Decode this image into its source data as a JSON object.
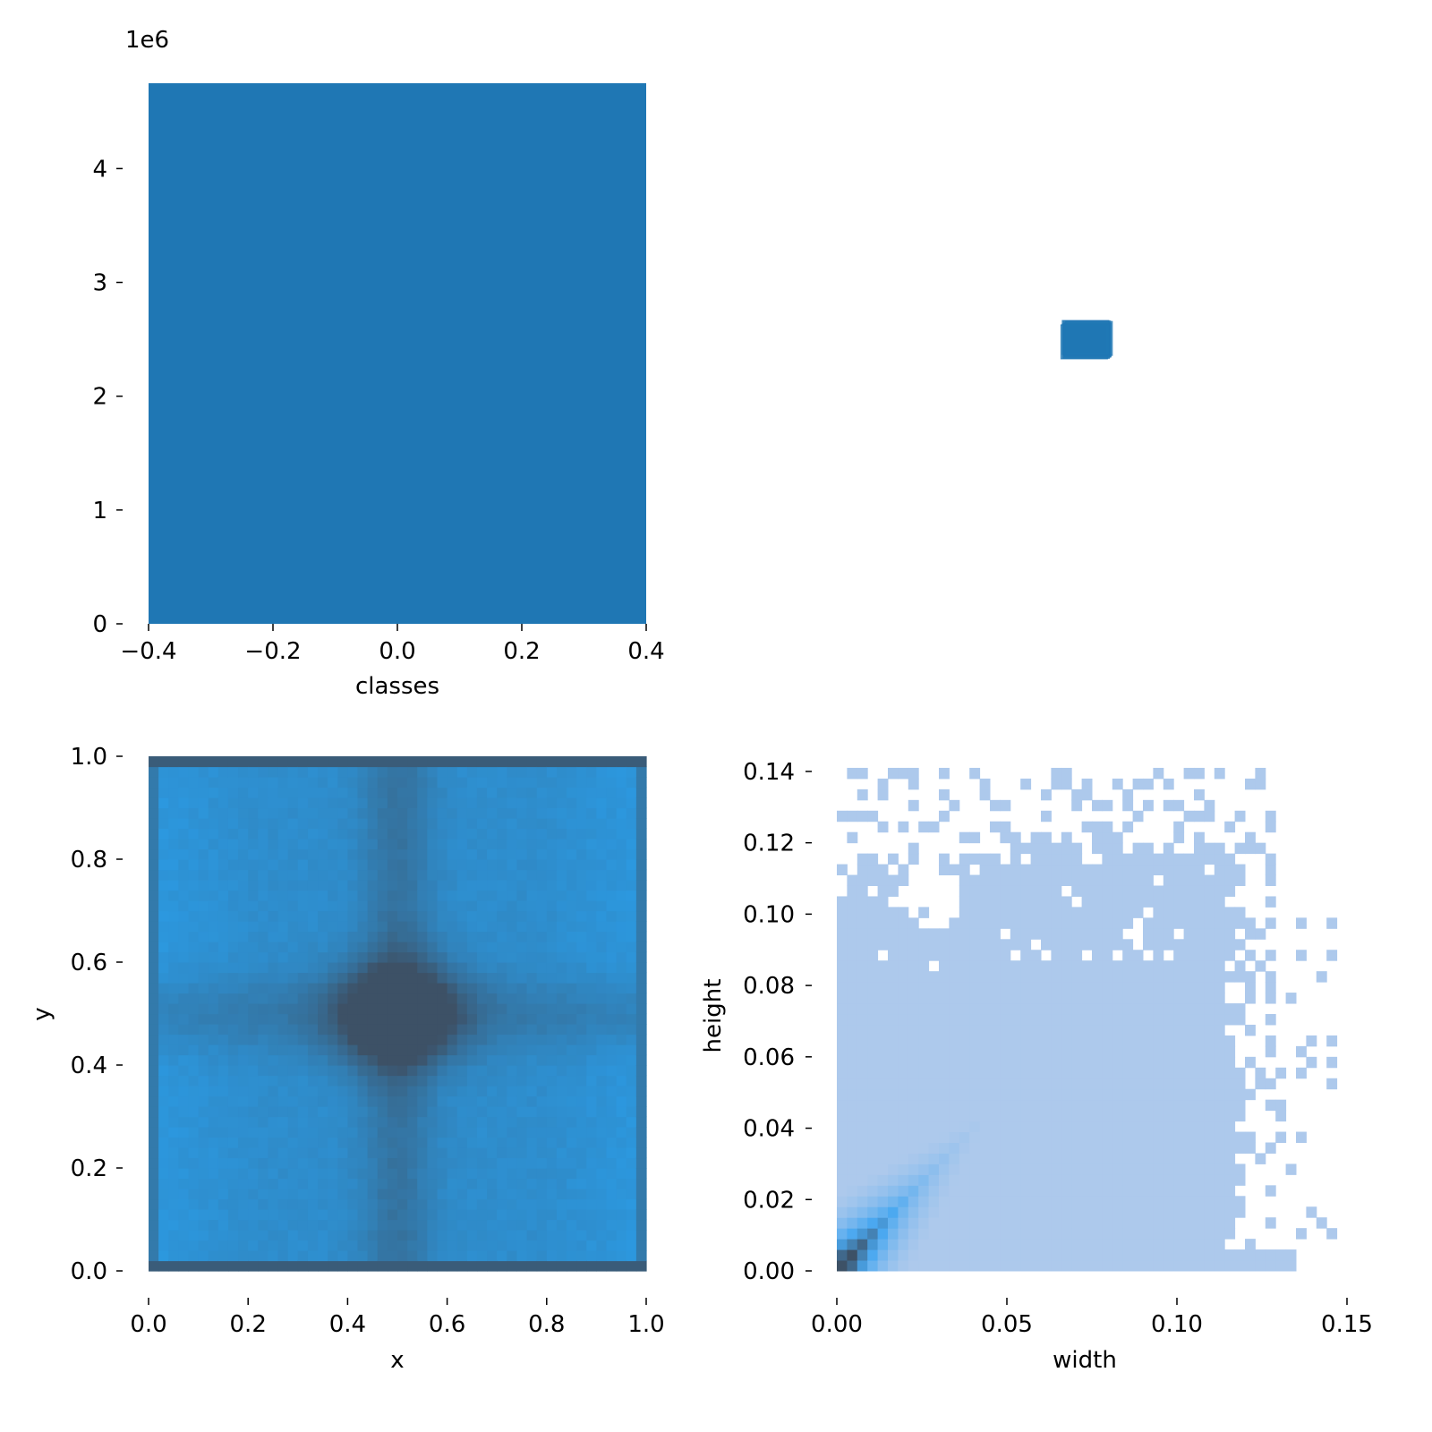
{
  "chart_data": [
    {
      "type": "bar",
      "panel": "top-left",
      "title": "",
      "xlabel": "classes",
      "ylabel": "",
      "offset_text": "1e6",
      "categories": [
        0
      ],
      "values": [
        4750000
      ],
      "bar_extent": [
        -0.4,
        0.4
      ],
      "xlim": [
        -0.4,
        0.4
      ],
      "ylim": [
        0,
        4750000
      ],
      "xticks": [
        -0.4,
        -0.2,
        0.0,
        0.2,
        0.4
      ],
      "xtick_labels": [
        "−0.4",
        "−0.2",
        "0.0",
        "0.2",
        "0.4"
      ],
      "yticks": [
        0,
        1,
        2,
        3,
        4
      ],
      "ytick_labels": [
        "0",
        "1",
        "2",
        "3",
        "4"
      ],
      "bar_color": "#1f77b4",
      "grid": false,
      "legend": "none"
    },
    {
      "type": "scatter",
      "panel": "top-right",
      "title": "",
      "note": "single cluster of overlapping square markers, no axes shown",
      "color": "#1f77b4",
      "grid": false
    },
    {
      "type": "heatmap",
      "panel": "bottom-left",
      "title": "",
      "xlabel": "x",
      "ylabel": "y",
      "xlim": [
        0,
        1
      ],
      "ylim": [
        0,
        1
      ],
      "xticks": [
        0.0,
        0.2,
        0.4,
        0.6,
        0.8,
        1.0
      ],
      "xtick_labels": [
        "0.0",
        "0.2",
        "0.4",
        "0.6",
        "0.8",
        "1.0"
      ],
      "yticks": [
        0.0,
        0.2,
        0.4,
        0.6,
        0.8,
        1.0
      ],
      "ytick_labels": [
        "0.0",
        "0.2",
        "0.4",
        "0.6",
        "0.8",
        "1.0"
      ],
      "bins": 50,
      "peak_center": [
        0.5,
        0.5
      ],
      "edge_density": "high along y=0 and y=1 borders",
      "color_low": "#2b9be4",
      "color_high": "#3d5166",
      "grid": false
    },
    {
      "type": "heatmap",
      "panel": "bottom-right",
      "title": "",
      "xlabel": "width",
      "ylabel": "height",
      "xlim": [
        0,
        0.15
      ],
      "ylim": [
        0,
        0.145
      ],
      "xticks": [
        0.0,
        0.05,
        0.1,
        0.15
      ],
      "xtick_labels": [
        "0.00",
        "0.05",
        "0.10",
        "0.15"
      ],
      "yticks": [
        0.0,
        0.02,
        0.04,
        0.06,
        0.08,
        0.1,
        0.12,
        0.14
      ],
      "ytick_labels": [
        "0.00",
        "0.02",
        "0.04",
        "0.06",
        "0.08",
        "0.10",
        "0.12",
        "0.14"
      ],
      "bin_size": 0.003,
      "peak": [
        0.007,
        0.007
      ],
      "color_base": "#adc9ec",
      "color_mid": "#4aa8f0",
      "color_peak": "#3d5166",
      "grid": false
    }
  ]
}
